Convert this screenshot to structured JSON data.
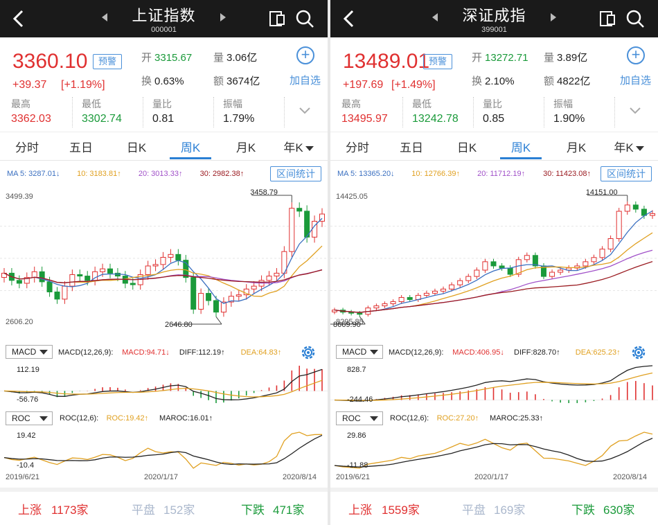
{
  "panels": [
    {
      "title": "上证指数",
      "code": "000001",
      "price": "3360.10",
      "warn": "预警",
      "change": "+39.37",
      "change_pct": "[+1.19%]",
      "open_k": "开",
      "open_v": "3315.67",
      "vol_k": "量",
      "vol_v": "3.06亿",
      "turn_k": "换",
      "turn_v": "0.63%",
      "amt_k": "额",
      "amt_v": "3674亿",
      "add_label": "加自选",
      "high_k": "最高",
      "high_v": "3362.03",
      "low_k": "最低",
      "low_v": "3302.74",
      "ratio_k": "量比",
      "ratio_v": "0.81",
      "amp_k": "振幅",
      "amp_v": "1.79%",
      "tabs": [
        "分时",
        "五日",
        "日K",
        "周K",
        "月K",
        "年K"
      ],
      "active_tab": 3,
      "ma": {
        "ma5": "MA 5: 3287.01↓",
        "ma10": "10: 3183.81↑",
        "ma20": "20: 3013.33↑",
        "ma30": "30: 2982.38↑"
      },
      "range_btn": "区间统计",
      "axis_top": "3499.39",
      "axis_bottom": "2606.20",
      "hi_label": "3458.79",
      "lo_label": "2646.80",
      "macd_sel": "MACD",
      "macd_params": "MACD(12,26,9):",
      "macd_val": "MACD:94.71↓",
      "diff_val": "DIFF:112.19↑",
      "dea_val": "DEA:64.83↑",
      "macd_top": "112.19",
      "macd_bottom": "-56.76",
      "roc_sel": "ROC",
      "roc_params": "ROC(12,6):",
      "roc_val": "ROC:19.42↑",
      "maroc_val": "MAROC:16.01↑",
      "roc_top": "19.42",
      "roc_bottom": "-10.4",
      "dates": [
        "2019/6/21",
        "2020/1/17",
        "2020/8/14"
      ],
      "up_k": "上涨",
      "up_v": "1173家",
      "flat_k": "平盘",
      "flat_v": "152家",
      "down_k": "下跌",
      "down_v": "471家"
    },
    {
      "title": "深证成指",
      "code": "399001",
      "price": "13489.01",
      "warn": "预警",
      "change": "+197.69",
      "change_pct": "[+1.49%]",
      "open_k": "开",
      "open_v": "13272.71",
      "vol_k": "量",
      "vol_v": "3.89亿",
      "turn_k": "换",
      "turn_v": "2.10%",
      "amt_k": "额",
      "amt_v": "4822亿",
      "add_label": "加自选",
      "high_k": "最高",
      "high_v": "13495.97",
      "low_k": "最低",
      "low_v": "13242.78",
      "ratio_k": "量比",
      "ratio_v": "0.85",
      "amp_k": "振幅",
      "amp_v": "1.90%",
      "tabs": [
        "分时",
        "五日",
        "日K",
        "周K",
        "月K",
        "年K"
      ],
      "active_tab": 3,
      "ma": {
        "ma5": "MA 5: 13365.20↓",
        "ma10": "10: 12766.39↑",
        "ma20": "20: 11712.19↑",
        "ma30": "30: 11423.08↑"
      },
      "range_btn": "区间统计",
      "axis_top": "14425.05",
      "axis_bottom": "8295.85",
      "hi_label": "14151.00",
      "lo_label": "8669.90",
      "macd_sel": "MACD",
      "macd_params": "MACD(12,26,9):",
      "macd_val": "MACD:406.95↓",
      "diff_val": "DIFF:828.70↑",
      "dea_val": "DEA:625.23↑",
      "macd_top": "828.7",
      "macd_bottom": "-244.46",
      "roc_sel": "ROC",
      "roc_params": "ROC(12,6):",
      "roc_val": "ROC:27.20↑",
      "maroc_val": "MAROC:25.33↑",
      "roc_top": "29.86",
      "roc_bottom": "-11.88",
      "dates": [
        "2019/6/21",
        "2020/1/17",
        "2020/8/14"
      ],
      "up_k": "上涨",
      "up_v": "1559家",
      "flat_k": "平盘",
      "flat_v": "169家",
      "down_k": "下跌",
      "down_v": "630家"
    }
  ],
  "colors": {
    "up": "#e03030",
    "down": "#1a9a3a",
    "accent": "#2a7fd4",
    "ma5": "#3a6fc0",
    "ma10": "#e0a020",
    "ma20": "#a050c8",
    "ma30": "#9a1a20"
  },
  "icons": [
    "back-icon",
    "prev-triangle-icon",
    "next-triangle-icon",
    "share-icon",
    "search-icon",
    "add-circle-icon",
    "chevron-down-icon",
    "gear-icon"
  ],
  "chart_data": [
    {
      "type": "line",
      "title": "上证指数",
      "ylim": [
        2606.2,
        3499.39
      ],
      "series": [
        {
          "values": [
            2950,
            2900,
            2880,
            2920,
            2960,
            2890,
            2820,
            2770,
            2860,
            2940,
            2930,
            2900,
            2960,
            2980,
            2950,
            2930,
            2880,
            2870,
            2940,
            3000,
            3010,
            3060,
            3080,
            3040,
            2920,
            2700,
            2810,
            2760,
            2680,
            2750,
            2790,
            2800,
            2840,
            2860,
            2900,
            2930,
            2950,
            3100,
            3400,
            3380,
            3200,
            3310,
            3360
          ]
        }
      ]
    },
    {
      "type": "line",
      "title": "深证成指",
      "ylim": [
        8295.85,
        14425.05
      ],
      "series": [
        {
          "values": [
            8900,
            8800,
            8750,
            8700,
            9000,
            9100,
            9200,
            9300,
            9500,
            9400,
            9600,
            9700,
            9800,
            9900,
            10100,
            10300,
            10500,
            10800,
            11200,
            11000,
            10900,
            10600,
            11300,
            11500,
            11000,
            10500,
            10700,
            10800,
            10900,
            11000,
            11200,
            11400,
            11800,
            12300,
            13600,
            13900,
            13700,
            13400,
            13489
          ]
        }
      ]
    }
  ]
}
